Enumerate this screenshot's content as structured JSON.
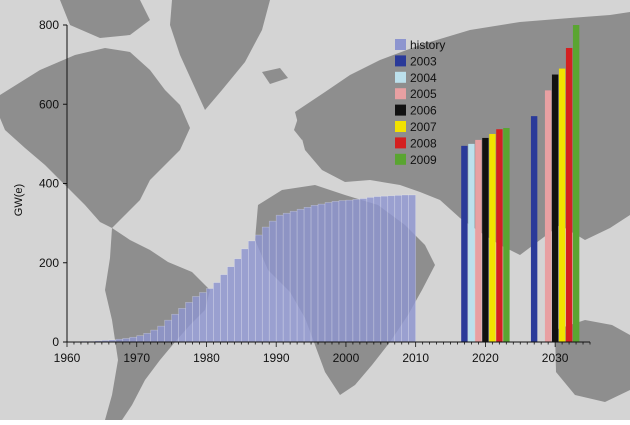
{
  "chart_data": {
    "type": "bar",
    "title": "",
    "xlabel": "",
    "ylabel": "GW(e)",
    "ylim": [
      0,
      800
    ],
    "xlim": [
      1960,
      2035
    ],
    "yticks": [
      0,
      200,
      400,
      600,
      800
    ],
    "xticks": [
      1960,
      1970,
      1980,
      1990,
      2000,
      2010,
      2020,
      2030
    ],
    "grid": false,
    "legend_position": "top-right",
    "background": "world map",
    "history": {
      "name": "history",
      "color": "#8d95cf",
      "x": [
        1960,
        1961,
        1962,
        1963,
        1964,
        1965,
        1966,
        1967,
        1968,
        1969,
        1970,
        1971,
        1972,
        1973,
        1974,
        1975,
        1976,
        1977,
        1978,
        1979,
        1980,
        1981,
        1982,
        1983,
        1984,
        1985,
        1986,
        1987,
        1988,
        1989,
        1990,
        1991,
        1992,
        1993,
        1994,
        1995,
        1996,
        1997,
        1998,
        1999,
        2000,
        2001,
        2002,
        2003,
        2004,
        2005,
        2006,
        2007,
        2008,
        2009
      ],
      "values": [
        1,
        1,
        2,
        2,
        3,
        4,
        5,
        7,
        9,
        12,
        16,
        22,
        30,
        40,
        55,
        70,
        85,
        100,
        115,
        125,
        135,
        150,
        170,
        190,
        210,
        235,
        255,
        270,
        290,
        305,
        320,
        325,
        330,
        335,
        340,
        345,
        348,
        352,
        355,
        357,
        358,
        360,
        362,
        365,
        367,
        368,
        369,
        370,
        371,
        371
      ]
    },
    "projections": {
      "series": [
        {
          "name": "2003",
          "color": "#2a3a99"
        },
        {
          "name": "2004",
          "color": "#bce0ec"
        },
        {
          "name": "2005",
          "color": "#e8a0a2"
        },
        {
          "name": "2006",
          "color": "#111111"
        },
        {
          "name": "2007",
          "color": "#f2e200"
        },
        {
          "name": "2008",
          "color": "#d42020"
        },
        {
          "name": "2009",
          "color": "#5aa531"
        }
      ],
      "groups": [
        {
          "year": 2020,
          "values": [
            495,
            500,
            510,
            515,
            525,
            537,
            540
          ]
        },
        {
          "year": 2030,
          "values": [
            570,
            null,
            635,
            675,
            690,
            742,
            800
          ]
        }
      ]
    }
  }
}
